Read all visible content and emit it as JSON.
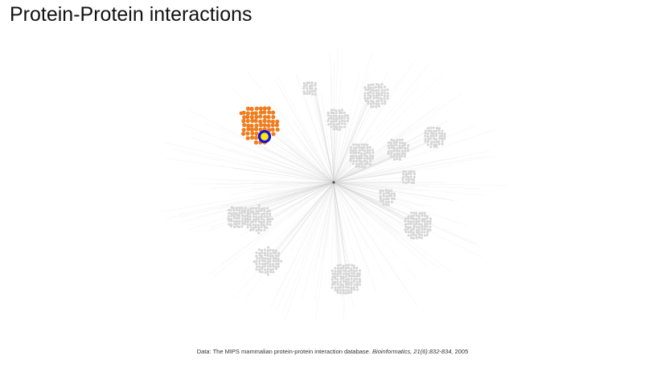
{
  "title": "Protein-Protein interactions",
  "caption": {
    "prefix": "Data: The MIPS mammalian protein-protein interaction database. ",
    "journal": "Bioinformatics, 21(6):832-834,",
    "year": " 2005"
  },
  "colors": {
    "highlight_cluster": "#f07d1e",
    "highlight_ring": "#1a10d8",
    "highlight_core": "#f5ee12",
    "background_cluster": "#d7d7d7",
    "edges": "#cfcfcf",
    "hub": "#555555"
  },
  "clusters": [
    {
      "id": "highlighted",
      "highlighted": true
    },
    {
      "id": "cluster-2",
      "highlighted": false
    },
    {
      "id": "cluster-3",
      "highlighted": false
    },
    {
      "id": "cluster-4",
      "highlighted": false
    },
    {
      "id": "cluster-5",
      "highlighted": false
    },
    {
      "id": "cluster-6",
      "highlighted": false
    },
    {
      "id": "cluster-7",
      "highlighted": false
    },
    {
      "id": "cluster-8",
      "highlighted": false
    },
    {
      "id": "cluster-9",
      "highlighted": false
    },
    {
      "id": "cluster-10",
      "highlighted": false
    },
    {
      "id": "cluster-11",
      "highlighted": false
    },
    {
      "id": "cluster-12",
      "highlighted": false
    },
    {
      "id": "cluster-13",
      "highlighted": false
    },
    {
      "id": "cluster-14",
      "highlighted": false
    }
  ]
}
